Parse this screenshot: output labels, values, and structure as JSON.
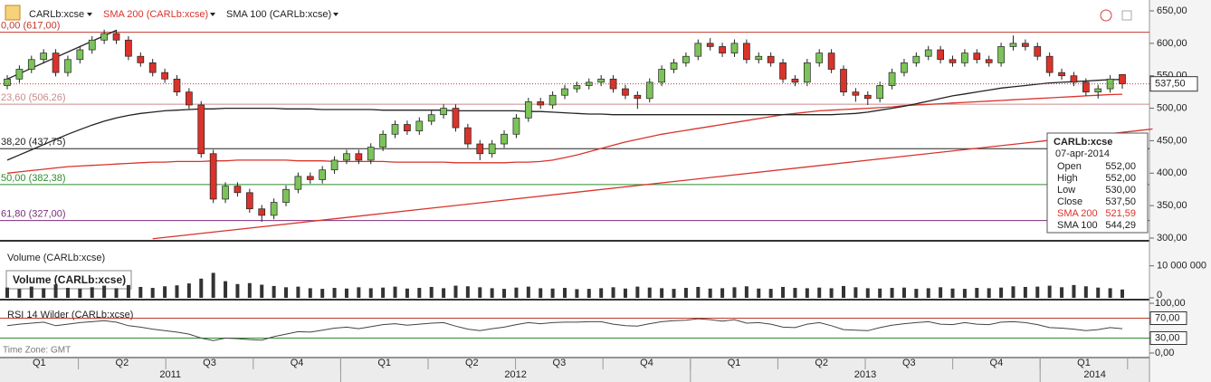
{
  "chart_data": {
    "type": "candlestick",
    "toolbar": [
      "CARLb:xcse",
      "SMA 200 (CARLb:xcse)",
      "SMA 100 (CARLb:xcse)"
    ],
    "ylim": [
      300,
      650
    ],
    "yticks": [
      {
        "value": 650,
        "label": "650,00"
      },
      {
        "value": 600,
        "label": "600,00"
      },
      {
        "value": 550,
        "label": "550,00"
      },
      {
        "value": 500,
        "label": "500,00"
      },
      {
        "value": 450,
        "label": "450,00"
      },
      {
        "value": 400,
        "label": "400,00"
      },
      {
        "value": 350,
        "label": "350,00"
      },
      {
        "value": 300,
        "label": "300,00"
      }
    ],
    "up_color": "#7cc35a",
    "down_color": "#d9332b",
    "open": [
      535,
      545,
      560,
      575,
      585,
      555,
      575,
      590,
      605,
      615,
      605,
      580,
      570,
      555,
      545,
      525,
      505,
      430,
      360,
      380,
      370,
      345,
      335,
      355,
      375,
      395,
      390,
      405,
      420,
      430,
      420,
      440,
      460,
      475,
      465,
      480,
      490,
      500,
      470,
      445,
      430,
      445,
      460,
      485,
      510,
      505,
      520,
      530,
      535,
      540,
      545,
      530,
      520,
      515,
      540,
      560,
      570,
      580,
      600,
      595,
      585,
      600,
      575,
      580,
      570,
      545,
      540,
      570,
      585,
      560,
      525,
      520,
      515,
      535,
      555,
      570,
      580,
      590,
      575,
      570,
      585,
      575,
      570,
      595,
      600,
      595,
      580,
      555,
      550,
      540,
      525,
      530,
      552
    ],
    "high": [
      551,
      566,
      581,
      591,
      591,
      581,
      596,
      611,
      621,
      621,
      611,
      586,
      576,
      561,
      551,
      531,
      511,
      436,
      386,
      386,
      376,
      351,
      361,
      381,
      401,
      401,
      411,
      426,
      436,
      436,
      446,
      466,
      481,
      481,
      486,
      496,
      506,
      506,
      476,
      451,
      451,
      466,
      491,
      516,
      516,
      526,
      536,
      541,
      546,
      551,
      551,
      536,
      526,
      546,
      566,
      576,
      586,
      606,
      608,
      601,
      606,
      606,
      586,
      586,
      576,
      551,
      576,
      591,
      591,
      566,
      531,
      526,
      541,
      561,
      576,
      586,
      596,
      596,
      581,
      591,
      591,
      581,
      601,
      612,
      606,
      601,
      586,
      561,
      556,
      546,
      536,
      551,
      552
    ],
    "low": [
      529,
      539,
      554,
      569,
      549,
      549,
      569,
      584,
      599,
      599,
      574,
      564,
      549,
      539,
      519,
      499,
      424,
      354,
      354,
      364,
      339,
      325,
      329,
      349,
      369,
      384,
      384,
      399,
      414,
      414,
      414,
      434,
      454,
      459,
      459,
      474,
      484,
      464,
      439,
      420,
      424,
      439,
      454,
      479,
      499,
      499,
      514,
      524,
      529,
      534,
      524,
      514,
      499,
      509,
      534,
      554,
      564,
      574,
      589,
      579,
      579,
      569,
      569,
      564,
      539,
      534,
      534,
      564,
      554,
      519,
      510,
      505,
      509,
      529,
      549,
      564,
      574,
      569,
      564,
      564,
      569,
      564,
      564,
      589,
      589,
      574,
      549,
      544,
      534,
      519,
      515,
      524,
      530
    ],
    "close": [
      545,
      560,
      575,
      585,
      555,
      575,
      590,
      605,
      615,
      605,
      580,
      570,
      555,
      545,
      525,
      505,
      430,
      360,
      380,
      370,
      345,
      335,
      355,
      375,
      395,
      390,
      405,
      420,
      430,
      420,
      440,
      460,
      475,
      465,
      480,
      490,
      500,
      470,
      445,
      430,
      445,
      460,
      485,
      510,
      505,
      520,
      530,
      535,
      540,
      545,
      530,
      520,
      515,
      540,
      560,
      570,
      580,
      600,
      595,
      585,
      600,
      575,
      580,
      570,
      545,
      540,
      570,
      585,
      560,
      525,
      520,
      515,
      535,
      555,
      570,
      580,
      590,
      575,
      570,
      585,
      575,
      570,
      595,
      600,
      595,
      580,
      555,
      550,
      540,
      525,
      530,
      545,
      537.5
    ],
    "series": [
      {
        "name": "SMA 200",
        "color": "#d9332b",
        "values": [
          400,
          402,
          404,
          406,
          408,
          410,
          411,
          412,
          413,
          414,
          415,
          416,
          417,
          417,
          418,
          418,
          418,
          419,
          419,
          420,
          420,
          420,
          420,
          420,
          419,
          419,
          419,
          418,
          418,
          418,
          418,
          418,
          417,
          417,
          417,
          417,
          417,
          416,
          416,
          416,
          416,
          416,
          417,
          417,
          418,
          420,
          424,
          428,
          433,
          438,
          443,
          448,
          452,
          456,
          460,
          463,
          466,
          469,
          472,
          475,
          478,
          481,
          484,
          487,
          490,
          492,
          494,
          496,
          497,
          498,
          499,
          500,
          501,
          502,
          504,
          505,
          506,
          507,
          508,
          509,
          510,
          511,
          512,
          513,
          514,
          515,
          516,
          517,
          518,
          519,
          520,
          521,
          521.59
        ]
      },
      {
        "name": "SMA 100",
        "color": "#222222",
        "values": [
          420,
          428,
          436,
          444,
          452,
          460,
          467,
          474,
          480,
          485,
          489,
          492,
          494,
          496,
          497,
          498,
          499,
          499,
          500,
          500,
          500,
          500,
          500,
          499,
          499,
          499,
          498,
          498,
          498,
          498,
          498,
          497,
          497,
          497,
          497,
          497,
          497,
          496,
          496,
          496,
          496,
          496,
          496,
          495,
          495,
          494,
          493,
          492,
          491,
          491,
          490,
          490,
          490,
          490,
          490,
          490,
          490,
          490,
          490,
          490,
          490,
          490,
          490,
          490,
          490,
          490,
          490,
          490,
          490,
          491,
          492,
          494,
          497,
          500,
          503,
          507,
          511,
          515,
          519,
          522,
          525,
          528,
          531,
          533,
          535,
          537,
          539,
          540,
          541,
          542,
          543,
          544,
          544.29
        ]
      }
    ],
    "trend_lines": [
      {
        "color": "#d9332b",
        "start_index": 12,
        "start_value": 299,
        "end_index": 94.5,
        "end_value": 468
      },
      {
        "color": "#222222",
        "start_index": 0,
        "start_value": 545,
        "end_index": 9,
        "end_value": 620
      }
    ],
    "fib_levels": [
      {
        "label": "0,00 (617,00)",
        "value": 617,
        "color": "#c0392b"
      },
      {
        "label": "23,60 (506,26)",
        "value": 506.26,
        "color": "#c98a8a"
      },
      {
        "label": "38,20 (437,75)",
        "value": 437.75,
        "color": "#222222"
      },
      {
        "label": "50,00 (382,38)",
        "value": 382.38,
        "color": "#2e8b2e"
      },
      {
        "label": "61,80 (327,00)",
        "value": 327,
        "color": "#7b2d7b"
      }
    ],
    "last_price": {
      "value": 537.5,
      "label": "537,50"
    },
    "info_box": {
      "title": "CARLb:xcse",
      "date": "07-apr-2014",
      "rows": [
        {
          "label": "Open",
          "value": "552,00"
        },
        {
          "label": "High",
          "value": "552,00"
        },
        {
          "label": "Low",
          "value": "530,00"
        },
        {
          "label": "Close",
          "value": "537,50"
        },
        {
          "label": "SMA 200",
          "value": "521,59",
          "color": "#d9332b"
        },
        {
          "label": "SMA 100",
          "value": "544,29"
        }
      ]
    },
    "volume": {
      "title": "Volume (CARLb:xcse)",
      "legend": "Volume (CARLb:xcse)",
      "ylim": [
        0,
        15000000
      ],
      "yticks": [
        {
          "value": 10000000,
          "label": "10 000 000"
        },
        0
      ],
      "values": [
        3200000,
        2800000,
        3500000,
        3000000,
        4200000,
        3100000,
        2900000,
        3300000,
        3800000,
        3000000,
        4000000,
        3400000,
        3100000,
        3600000,
        3900000,
        4500000,
        6000000,
        7800000,
        5200000,
        4300000,
        4600000,
        4100000,
        3700000,
        3300000,
        3500000,
        3000000,
        2800000,
        3100000,
        2900000,
        3300000,
        3000000,
        3200000,
        3500000,
        2900000,
        3100000,
        3400000,
        3000000,
        3800000,
        3600000,
        3300000,
        3000000,
        2800000,
        3200000,
        3500000,
        3000000,
        2900000,
        3100000,
        2700000,
        2800000,
        3000000,
        3300000,
        2900000,
        3500000,
        3200000,
        3000000,
        2800000,
        3100000,
        3400000,
        2900000,
        3000000,
        3300000,
        3600000,
        2900000,
        2800000,
        3400000,
        3100000,
        3000000,
        3200000,
        3000000,
        3700000,
        3300000,
        3000000,
        2900000,
        3100000,
        3200000,
        2800000,
        3000000,
        3300000,
        2900000,
        2800000,
        3100000,
        3000000,
        3200000,
        3600000,
        3400000,
        3500000,
        3800000,
        3300000,
        4000000,
        3600000,
        3200000,
        3000000,
        2600000
      ]
    },
    "rsi": {
      "title": "RSI 14 Wilder (CARLb:xcse)",
      "color": "#444444",
      "ylim": [
        0,
        100
      ],
      "yticks": [
        {
          "value": 100,
          "label": "100,00"
        },
        {
          "value": 70,
          "label": "70,00"
        },
        {
          "value": 30,
          "label": "30,00"
        },
        {
          "value": 0,
          "label": "0,00"
        }
      ],
      "bands": [
        70,
        30
      ],
      "values": [
        55,
        58,
        60,
        62,
        55,
        58,
        61,
        63,
        65,
        62,
        55,
        52,
        48,
        45,
        42,
        38,
        30,
        25,
        30,
        29,
        27,
        26,
        33,
        38,
        43,
        42,
        46,
        50,
        52,
        49,
        53,
        57,
        59,
        56,
        58,
        60,
        61,
        54,
        48,
        45,
        49,
        52,
        57,
        61,
        59,
        61,
        62,
        62,
        63,
        63,
        58,
        55,
        54,
        59,
        63,
        65,
        66,
        69,
        67,
        64,
        67,
        60,
        61,
        58,
        52,
        51,
        58,
        61,
        55,
        47,
        46,
        45,
        51,
        56,
        59,
        61,
        63,
        58,
        57,
        61,
        58,
        57,
        62,
        63,
        61,
        57,
        51,
        50,
        48,
        45,
        47,
        51,
        49
      ],
      "footer": "Time Zone: GMT"
    },
    "quarters": [
      "Q1",
      "Q2",
      "Q3",
      "Q4",
      "Q1",
      "Q2",
      "Q3",
      "Q4",
      "Q1",
      "Q2",
      "Q3",
      "Q4",
      "Q1"
    ],
    "years": [
      "2011",
      "2012",
      "2013",
      "2014"
    ]
  }
}
